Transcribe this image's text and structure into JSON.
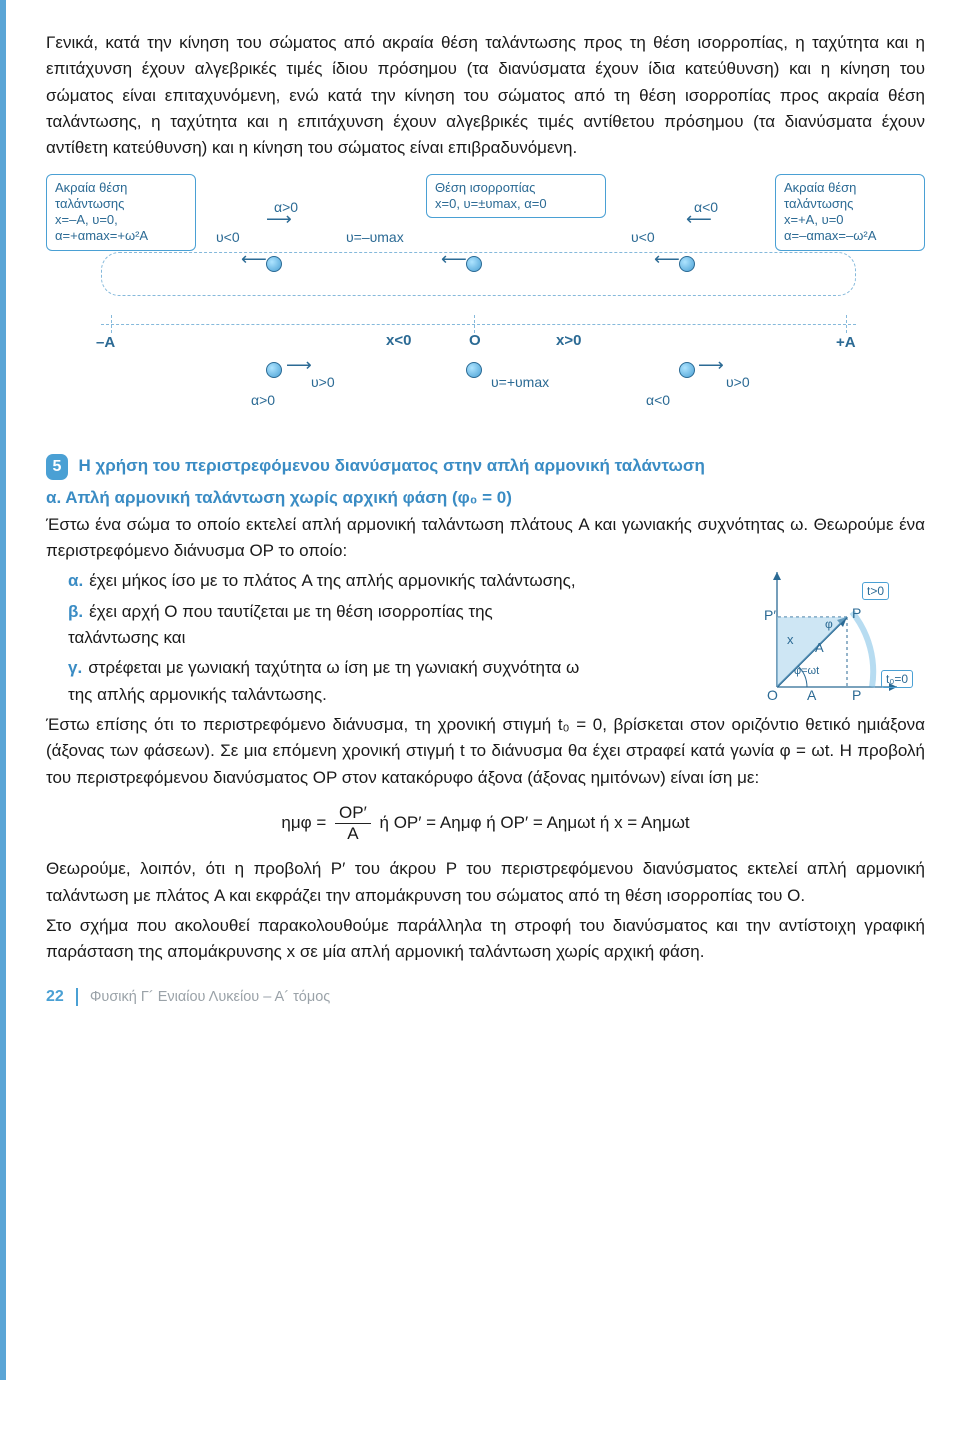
{
  "intro": "Γενικά, κατά την κίνηση του σώματος από ακραία θέση ταλάντωσης προς τη θέση ισορροπίας, η ταχύτητα και η επιτάχυνση έχουν αλγεβρικές τιμές ίδιου πρόσημου (τα διανύσματα έχουν ίδια κατεύθυνση) και η κίνηση του σώματος είναι επιταχυνόμενη, ενώ κατά την κίνηση του σώματος από τη θέση ισορροπίας προς ακραία θέση ταλάντωσης, η ταχύτητα και η επιτάχυνση έχουν αλγεβρικές τιμές αντίθετου πρόσημου (τα διανύσματα έχουν αντίθετη κατεύθυνση) και η κίνηση του σώματος είναι επιβραδυνόμενη.",
  "diag1": {
    "left_call": "Ακραία θέση\nταλάντωσης\nx=–A, υ=0,\nα=+αmax=+ω²A",
    "mid_call": "Θέση ισορροπίας\nx=0, υ=±υmax, α=0",
    "right_call": "Ακραία θέση\nταλάντωσης\nx=+A, υ=0\nα=–αmax=–ω²A",
    "uLt0": "υ<0",
    "aGt0": "α>0",
    "u_minus": "υ=–υmax",
    "aLt0": "α<0",
    "minusA": "–A",
    "plusA": "+A",
    "xlt0": "x<0",
    "O": "O",
    "xgt0": "x>0",
    "uGt0": "υ>0",
    "u_plus": "υ=+υmax"
  },
  "sec5": {
    "num": "5",
    "title": "Η χρήση του περιστρεφόμενου διανύσματος στην απλή αρμονική ταλάντωση",
    "a_head": "α. Απλή αρμονική ταλάντωση χωρίς αρχική φάση (φ₀ = 0)",
    "a_body1": "Έστω ένα σώμα το οποίο εκτελεί απλή αρμονική ταλάντωση πλάτους A και γωνιακής συχνότητας ω. Θεωρούμε ένα περιστρεφόμενο διάνυσμα ΟΡ το οποίο:",
    "li_a": "έχει μήκος ίσο με το πλάτος A της απλής αρμονικής ταλάντωσης,",
    "li_b": "έχει αρχή O που ταυτίζεται με τη θέση ισορροπίας της ταλάντωσης και",
    "li_c": "στρέφεται με γωνιακή ταχύτητα ω ίση με τη γωνιακή συχνότητα ω της απλής αρμονικής ταλάντωσης.",
    "a_body2": "Έστω επίσης ότι το περιστρεφόμενο διάνυσμα, τη χρονική στιγμή t₀ = 0, βρίσκεται στον οριζόντιο θετικό ημιάξονα (άξονας των φάσεων). Σε μια επόμενη χρονική στιγμή t το διάνυσμα θα έχει στραφεί κατά γωνία φ = ωt. Η προβολή του περιστρεφόμενου διανύσματος ΟΡ στον κατακόρυφο άξονα (άξονας ημιτόνων) είναι ίση με:",
    "formula_lead": "ημφ =",
    "frac_num": "OP′",
    "frac_den": "A",
    "formula_tail": "  ή  OP′ = Aημφ  ή  OP′ = Aημωt  ή  x = Aημωt",
    "a_body3": "Θεωρούμε, λοιπόν, ότι η προβολή P′ του άκρου P του περιστρεφόμενου διανύσματος εκτελεί απλή αρμονική ταλάντωση με πλάτος A και εκφράζει την απομάκρυνση του σώματος από τη θέση ισορροπίας του O.",
    "a_body4": "Στο σχήμα που ακολουθεί παρακολουθούμε παράλληλα τη στροφή του διανύσματος και την αντίστοιχη γραφική παράσταση της απομάκρυνσης x σε μία απλή αρμονική ταλάντωση χωρίς αρχική φάση."
  },
  "diag2": {
    "tgt0": "t>0",
    "t00": "t₀=0",
    "P": "P",
    "Pp": "P′",
    "phi": "φ",
    "x": "x",
    "A": "A",
    "O": "O",
    "phiwt": "φ=ωt"
  },
  "footer": {
    "page": "22",
    "text": "Φυσική Γ´ Ενιαίου Λυκείου – Α´ τόμος"
  }
}
